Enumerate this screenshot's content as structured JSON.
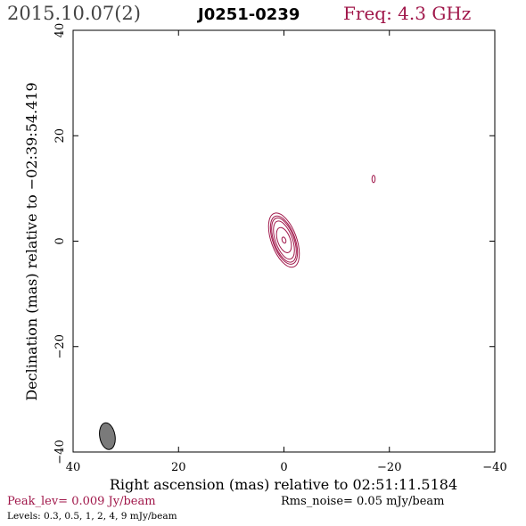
{
  "header": {
    "date": "2015.10.07(2)",
    "source": "J0251-0239",
    "freq": "Freq: 4.3 GHz"
  },
  "colors": {
    "contour": "#a0174a",
    "freq_text": "#a0174a",
    "peak_text": "#a0174a",
    "beam_fill": "#7a7a7a",
    "axis": "#000000"
  },
  "chart_data": {
    "type": "contour",
    "xlabel": "Right ascension (mas) relative to 02:51:11.5184",
    "ylabel": "Declination (mas) relative to −02:39:54.419",
    "xlim": [
      40,
      -40
    ],
    "ylim": [
      -40,
      40
    ],
    "x_ticks": [
      40,
      20,
      0,
      -20,
      -40
    ],
    "x_tick_labels": [
      "40",
      "20",
      "0",
      "−20",
      "−40"
    ],
    "y_ticks": [
      -40,
      -20,
      0,
      20,
      40
    ],
    "y_tick_labels": [
      "−40",
      "−20",
      "0",
      "20",
      "40"
    ],
    "contour_levels_mJy": [
      0.3,
      0.5,
      1,
      2,
      4,
      9
    ],
    "components": [
      {
        "name": "core",
        "x": 0.0,
        "y": 0.2,
        "major_mas": [
          10.8,
          9.6,
          8.8,
          7.6,
          5.0,
          1.2
        ],
        "minor_mas": [
          4.8,
          4.2,
          3.8,
          3.2,
          2.4,
          0.7
        ],
        "pa_deg": -20
      },
      {
        "name": "knot",
        "x": -17.0,
        "y": 11.8,
        "major_mas": [
          1.4
        ],
        "minor_mas": [
          0.6
        ],
        "pa_deg": 0
      }
    ],
    "beam": {
      "x": 33.5,
      "y": -37.0,
      "major_mas": 4.6,
      "minor_mas": 2.4,
      "pa_deg": -10
    },
    "peak": "Peak_lev=  0.009 Jy/beam",
    "rms": "Rms_noise= 0.05 mJy/beam",
    "levels": "Levels: 0.3, 0.5,   1,   2,   4,   9 mJy/beam"
  }
}
